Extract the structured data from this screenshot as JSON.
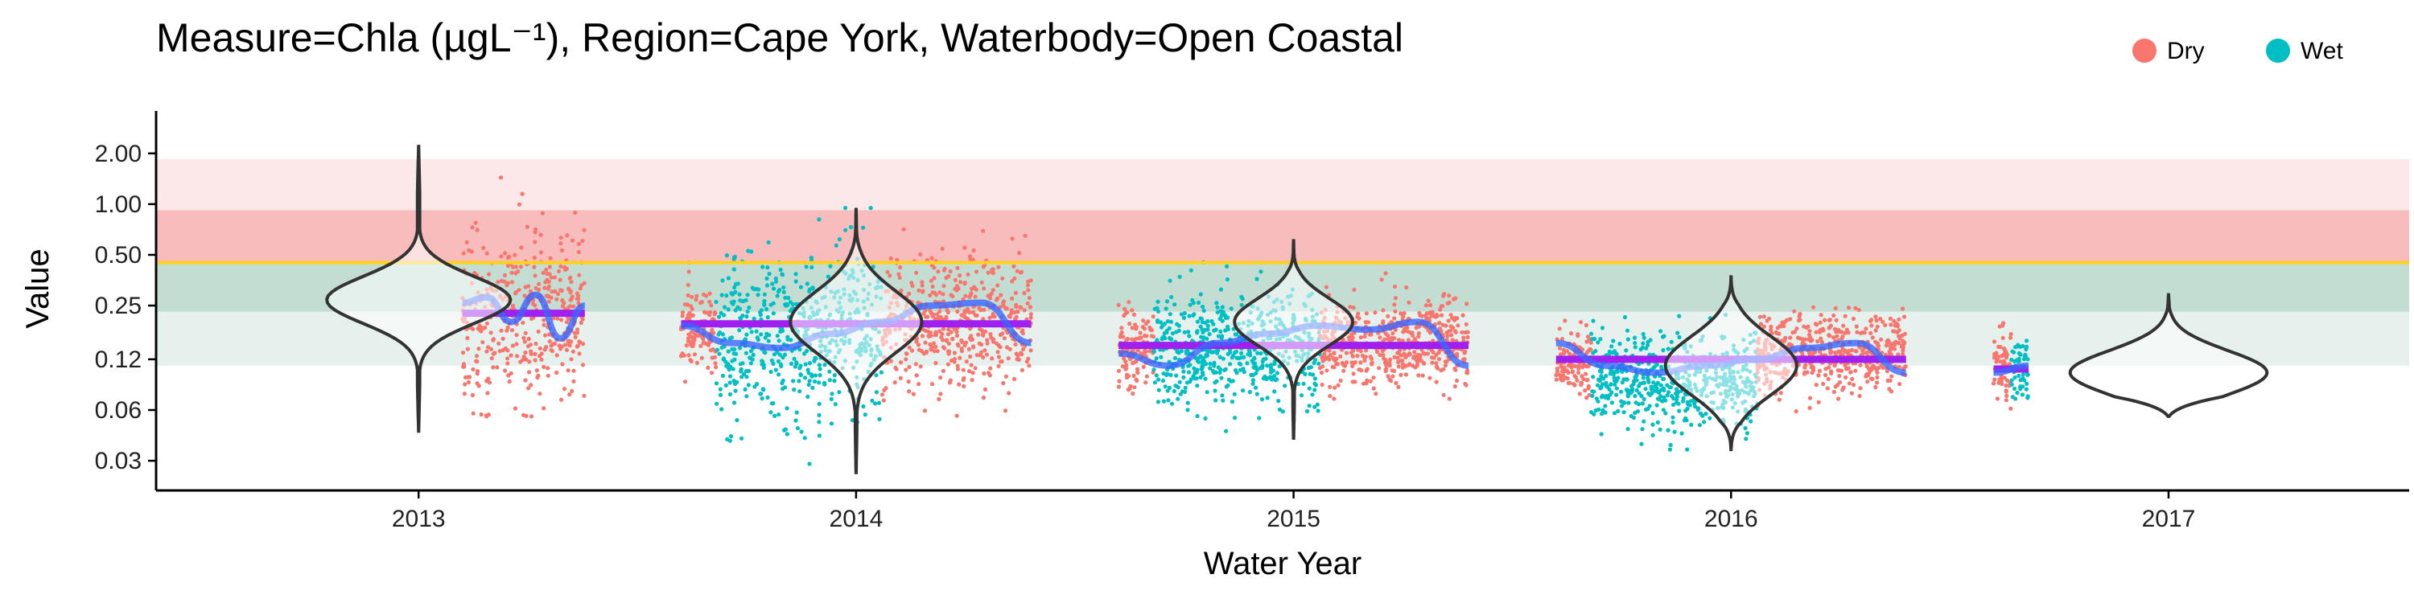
{
  "chart_data": {
    "type": "violin",
    "title": "Measure=Chla (µgL⁻¹), Region=Cape York, Waterbody=Open Coastal",
    "xlabel": "Water Year",
    "ylabel": "Value",
    "y_scale": "log",
    "ylim": [
      0.02,
      3.2
    ],
    "y_ticks": [
      0.03,
      0.06,
      0.12,
      0.25,
      0.5,
      1.0,
      2.0
    ],
    "y_tick_labels": [
      "0.03",
      "0.06",
      "0.12",
      "0.25",
      "0.50",
      "1.00",
      "2.00"
    ],
    "categories": [
      "2013",
      "2014",
      "2015",
      "2016",
      "2017"
    ],
    "xlim": [
      2012.4,
      2017.55
    ],
    "guideline": 0.45,
    "guideline_color": "#ffd21a",
    "bands": [
      {
        "from": 0.11,
        "to": 0.23,
        "color": "#e6f1ed"
      },
      {
        "from": 0.23,
        "to": 0.45,
        "color": "#c3ddd2"
      },
      {
        "from": 0.45,
        "to": 0.92,
        "color": "#f8bcbc"
      },
      {
        "from": 0.92,
        "to": 1.85,
        "color": "#fce8e8"
      }
    ],
    "legend": {
      "position": "top-right",
      "items": [
        {
          "label": "Dry",
          "color": "#f8766d"
        },
        {
          "label": "Wet",
          "color": "#00bfc4"
        }
      ]
    },
    "series": [
      {
        "year": "2013",
        "violin": {
          "min": 0.045,
          "max": 2.2,
          "mode": 0.27,
          "width": 0.42,
          "spread": 0.32
        },
        "mean": 0.225,
        "points": [
          {
            "season": "Dry",
            "start": 2013.1,
            "end": 2013.38,
            "center": 0.22,
            "low": 0.055,
            "high": 2.2
          }
        ],
        "trend": [
          0.26,
          0.28,
          0.2,
          0.29,
          0.16,
          0.25
        ]
      },
      {
        "year": "2014",
        "violin": {
          "min": 0.025,
          "max": 0.95,
          "mode": 0.2,
          "width": 0.3,
          "spread": 0.42
        },
        "mean": 0.195,
        "points": [
          {
            "season": "Dry",
            "start": 2013.6,
            "end": 2013.68,
            "center": 0.18,
            "low": 0.065,
            "high": 0.45
          },
          {
            "season": "Wet",
            "start": 2013.68,
            "end": 2014.06,
            "center": 0.16,
            "low": 0.025,
            "high": 0.95
          },
          {
            "season": "Dry",
            "start": 2014.06,
            "end": 2014.4,
            "center": 0.2,
            "low": 0.055,
            "high": 0.95
          }
        ],
        "trend": [
          0.19,
          0.15,
          0.14,
          0.17,
          0.2,
          0.25,
          0.26,
          0.15
        ]
      },
      {
        "year": "2015",
        "violin": {
          "min": 0.04,
          "max": 0.62,
          "mode": 0.2,
          "width": 0.27,
          "spread": 0.32
        },
        "mean": 0.145,
        "points": [
          {
            "season": "Dry",
            "start": 2014.6,
            "end": 2014.68,
            "center": 0.14,
            "low": 0.07,
            "high": 0.4
          },
          {
            "season": "Wet",
            "start": 2014.68,
            "end": 2015.06,
            "center": 0.14,
            "low": 0.045,
            "high": 0.6
          },
          {
            "season": "Dry",
            "start": 2015.06,
            "end": 2015.4,
            "center": 0.15,
            "low": 0.07,
            "high": 0.45
          }
        ],
        "trend": [
          0.13,
          0.11,
          0.15,
          0.17,
          0.19,
          0.18,
          0.2,
          0.11
        ]
      },
      {
        "year": "2016",
        "violin": {
          "min": 0.035,
          "max": 0.37,
          "mode": 0.11,
          "width": 0.3,
          "spread": 0.4
        },
        "mean": 0.12,
        "points": [
          {
            "season": "Dry",
            "start": 2015.6,
            "end": 2015.68,
            "center": 0.11,
            "low": 0.07,
            "high": 0.3
          },
          {
            "season": "Wet",
            "start": 2015.68,
            "end": 2016.06,
            "center": 0.09,
            "low": 0.035,
            "high": 0.3
          },
          {
            "season": "Dry",
            "start": 2016.06,
            "end": 2016.4,
            "center": 0.13,
            "low": 0.055,
            "high": 0.3
          }
        ],
        "trend": [
          0.15,
          0.11,
          0.1,
          0.11,
          0.12,
          0.14,
          0.15,
          0.1
        ]
      },
      {
        "year": "2017",
        "violin": {
          "min": 0.055,
          "max": 0.29,
          "mode": 0.1,
          "width": 0.45,
          "spread": 0.3
        },
        "mean": 0.105,
        "points": [
          {
            "season": "Dry",
            "start": 2016.6,
            "end": 2016.64,
            "center": 0.11,
            "low": 0.055,
            "high": 0.27
          },
          {
            "season": "Wet",
            "start": 2016.64,
            "end": 2016.68,
            "center": 0.1,
            "low": 0.07,
            "high": 0.25
          }
        ],
        "trend": [
          0.1,
          0.11
        ]
      }
    ]
  }
}
